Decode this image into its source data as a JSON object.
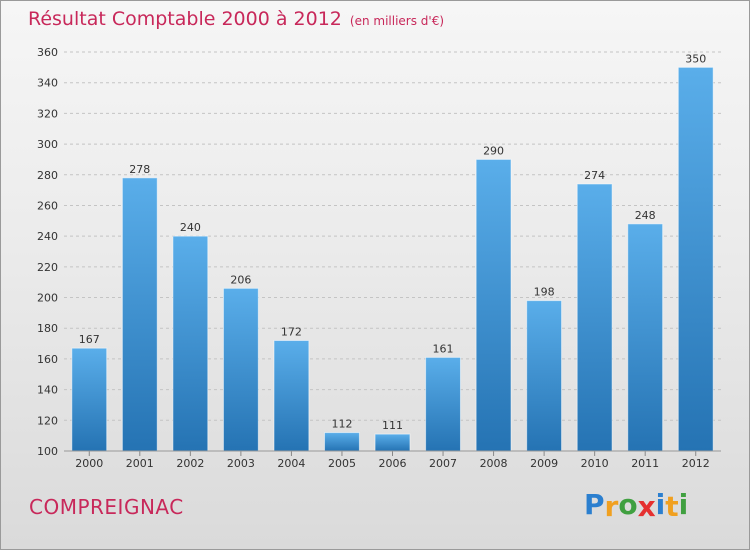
{
  "title": "Résultat Comptable 2000 à 2012",
  "subtitle": "(en milliers d'€)",
  "commune": "COMPREIGNAC",
  "logo": {
    "text": "Proxiti",
    "letters": [
      {
        "char": "P",
        "color": "#2b7fcf"
      },
      {
        "char": "r",
        "color": "#f0a020"
      },
      {
        "char": "o",
        "color": "#40a040"
      },
      {
        "char": "x",
        "color": "#e53030"
      },
      {
        "char": "i",
        "color": "#2b7fcf"
      },
      {
        "char": "t",
        "color": "#f0a020"
      },
      {
        "char": "i",
        "color": "#40a040"
      }
    ]
  },
  "colors": {
    "bar_top": "#5aaeea",
    "bar_bottom": "#2573b3",
    "title": "#c8285a",
    "grid": "#c4c4c4",
    "text": "#333333"
  },
  "chart_data": {
    "type": "bar",
    "categories": [
      "2000",
      "2001",
      "2002",
      "2003",
      "2004",
      "2005",
      "2006",
      "2007",
      "2008",
      "2009",
      "2010",
      "2011",
      "2012"
    ],
    "values": [
      167,
      278,
      240,
      206,
      172,
      112,
      111,
      161,
      290,
      198,
      274,
      248,
      350
    ],
    "title": "Résultat Comptable 2000 à 2012",
    "subtitle": "(en milliers d'€)",
    "xlabel": "",
    "ylabel": "",
    "ylim": [
      100,
      360
    ],
    "yticks": [
      100,
      120,
      140,
      160,
      180,
      200,
      220,
      240,
      260,
      280,
      300,
      320,
      340,
      360
    ],
    "grid": true,
    "data_labels": true
  }
}
